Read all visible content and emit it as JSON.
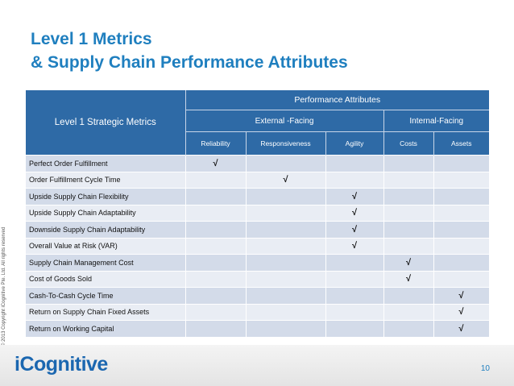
{
  "title": {
    "line1": "Level 1 Metrics",
    "line2": "& Supply Chain Performance Attributes"
  },
  "copyright": "© 2013 Copyright iCognitive Pte. Ltd. All rights reserved",
  "table": {
    "corner_header": "Level 1 Strategic Metrics",
    "performance_header": "Performance Attributes",
    "groups": [
      {
        "label": "External -Facing"
      },
      {
        "label": "Internal-Facing"
      }
    ],
    "attributes": [
      "Reliability",
      "Responsiveness",
      "Agility",
      "Costs",
      "Assets"
    ],
    "check_mark": "√",
    "rows": [
      {
        "metric": "Perfect Order Fulfillment",
        "checks": [
          "√",
          "",
          "",
          "",
          ""
        ]
      },
      {
        "metric": "Order Fulfillment Cycle Time",
        "checks": [
          "",
          "√",
          "",
          "",
          ""
        ]
      },
      {
        "metric": "Upside Supply Chain Flexibility",
        "checks": [
          "",
          "",
          "√",
          "",
          ""
        ]
      },
      {
        "metric": "Upside Supply Chain Adaptability",
        "checks": [
          "",
          "",
          "√",
          "",
          ""
        ]
      },
      {
        "metric": "Downside Supply Chain Adaptability",
        "checks": [
          "",
          "",
          "√",
          "",
          ""
        ]
      },
      {
        "metric": "Overall Value at Risk (VAR)",
        "checks": [
          "",
          "",
          "√",
          "",
          ""
        ]
      },
      {
        "metric": "Supply Chain Management Cost",
        "checks": [
          "",
          "",
          "",
          "√",
          ""
        ]
      },
      {
        "metric": "Cost of Goods Sold",
        "checks": [
          "",
          "",
          "",
          "√",
          ""
        ]
      },
      {
        "metric": "Cash-To-Cash Cycle Time",
        "checks": [
          "",
          "",
          "",
          "",
          "√"
        ]
      },
      {
        "metric": "Return on Supply Chain Fixed Assets",
        "checks": [
          "",
          "",
          "",
          "",
          "√"
        ]
      },
      {
        "metric": "Return on Working Capital",
        "checks": [
          "",
          "",
          "",
          "",
          "√"
        ]
      }
    ]
  },
  "footer": {
    "logo": "iCognitive",
    "page_number": "10"
  },
  "colors": {
    "title": "#1f7fbf",
    "header_bg": "#2e6aa6",
    "row_even": "#d3dbe9",
    "row_odd": "#e9edf4"
  }
}
